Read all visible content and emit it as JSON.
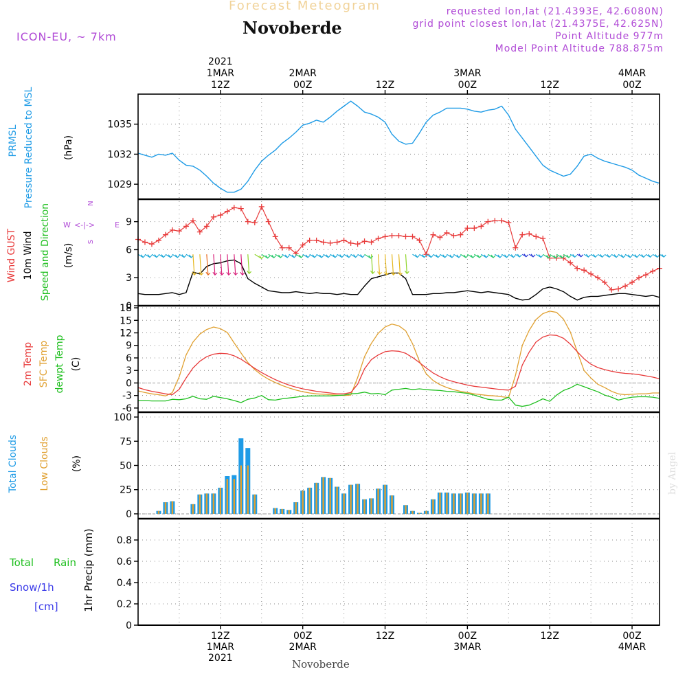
{
  "header": {
    "title": "Forecast Meteogram",
    "location": "Novoberde",
    "model": "ICON-EU, ~ 7km",
    "requested": "requested lon,lat (21.4393E, 42.6080N)",
    "grid_point": "grid point closest lon,lat (21.4375E, 42.625N)",
    "point_altitude": "Point Altitude 977m",
    "model_altitude": "Model Point Altitude 788.875m",
    "footer_location": "Novoberde",
    "watermark": "by Angel"
  },
  "time_axis": {
    "top_ticks": [
      {
        "hour": 12,
        "lines": [
          "2021",
          "1MAR",
          "12Z"
        ]
      },
      {
        "hour": 24,
        "lines": [
          "2MAR",
          "00Z"
        ]
      },
      {
        "hour": 36,
        "lines": [
          "12Z"
        ]
      },
      {
        "hour": 48,
        "lines": [
          "3MAR",
          "00Z"
        ]
      },
      {
        "hour": 60,
        "lines": [
          "12Z"
        ]
      },
      {
        "hour": 72,
        "lines": [
          "4MAR",
          "00Z"
        ]
      }
    ],
    "bottom_ticks": [
      {
        "hour": 12,
        "lines": [
          "12Z",
          "1MAR",
          "2021"
        ]
      },
      {
        "hour": 24,
        "lines": [
          "00Z",
          "2MAR"
        ]
      },
      {
        "hour": 36,
        "lines": [
          "12Z"
        ]
      },
      {
        "hour": 48,
        "lines": [
          "00Z",
          "3MAR"
        ]
      },
      {
        "hour": 60,
        "lines": [
          "12Z"
        ]
      },
      {
        "hour": 72,
        "lines": [
          "00Z",
          "4MAR"
        ]
      }
    ]
  },
  "panels": {
    "pressure": {
      "labels": [
        {
          "text": "PRMSL",
          "color": "#1e9be6"
        },
        {
          "text": "Pressure Reduced to MSL",
          "color": "#1e9be6"
        },
        {
          "text": "(hPa)",
          "color": "#000000"
        }
      ],
      "ticks": [
        "1029",
        "1032",
        "1035"
      ]
    },
    "wind": {
      "labels": [
        {
          "text": "Wind GUST",
          "color": "#e83a3a"
        },
        {
          "text": "10m Wind",
          "color": "#000000"
        },
        {
          "text": "Speed and Direction",
          "color": "#1fbf1f"
        },
        {
          "text": "(m/s)",
          "color": "#000000"
        }
      ],
      "compass": {
        "n": "N",
        "s": "S",
        "w": "W",
        "e": "E",
        "arrows": "<-|->",
        "color": "#b04ad6"
      },
      "ticks": [
        "0",
        "3",
        "6",
        "9"
      ]
    },
    "temperature": {
      "labels": [
        {
          "text": "2m Temp",
          "color": "#e83a3a"
        },
        {
          "text": "SFC Temp",
          "color": "#e0a030"
        },
        {
          "text": "dewpt Temp",
          "color": "#1fbf1f"
        },
        {
          "text": "(C)",
          "color": "#000000"
        }
      ],
      "ticks": [
        "-6",
        "-3",
        "0",
        "3",
        "6",
        "9",
        "12",
        "15",
        "18"
      ]
    },
    "clouds": {
      "labels": [
        {
          "text": "Total Clouds",
          "color": "#1e9be6"
        },
        {
          "text": "Low Clouds",
          "color": "#e0a030"
        },
        {
          "text": "(%)",
          "color": "#000000"
        }
      ],
      "ticks": [
        "0",
        "25",
        "50",
        "75",
        "100"
      ]
    },
    "precip": {
      "labels": [
        {
          "text": "Total",
          "color": "#1fbf1f"
        },
        {
          "text": "Rain",
          "color": "#1fbf1f"
        },
        {
          "text": "Snow/1h",
          "color": "#3a3ae8"
        },
        {
          "text": "[cm]",
          "color": "#3a3ae8"
        },
        {
          "text": "1hr Precip (mm)",
          "color": "#000000"
        }
      ],
      "ticks": [
        "0",
        "0.2",
        "0.4",
        "0.6",
        "0.8"
      ]
    }
  },
  "chart_data": {
    "type": "line",
    "x_unit": "hours since 2021-03-01 00Z",
    "xlim": [
      0,
      76
    ],
    "colors": {
      "pressure": "#1e9be6",
      "gust": "#e83a3a",
      "wind": "#000000",
      "temp2m": "#e83a3a",
      "sfc": "#e0a030",
      "dew": "#1fbf1f",
      "total_clouds": "#1e9be6",
      "low_clouds": "#e0a030"
    },
    "pressure": {
      "name": "PRMSL",
      "ylim": [
        1027.5,
        1038
      ],
      "x": [
        0,
        1,
        2,
        3,
        4,
        5,
        6,
        7,
        8,
        9,
        10,
        11,
        12,
        13,
        14,
        15,
        16,
        17,
        18,
        19,
        20,
        21,
        22,
        23,
        24,
        25,
        26,
        27,
        28,
        29,
        30,
        31,
        32,
        33,
        34,
        35,
        36,
        37,
        38,
        39,
        40,
        41,
        42,
        43,
        44,
        45,
        46,
        47,
        48,
        49,
        50,
        51,
        52,
        53,
        54,
        55,
        56,
        57,
        58,
        59,
        60,
        61,
        62,
        63,
        64,
        65,
        66,
        67,
        68,
        69,
        70,
        71,
        72,
        73,
        74,
        75,
        76
      ],
      "values": [
        1032.1,
        1031.9,
        1031.7,
        1032.0,
        1031.9,
        1032.1,
        1031.4,
        1030.9,
        1030.8,
        1030.4,
        1029.8,
        1029.1,
        1028.6,
        1028.2,
        1028.2,
        1028.5,
        1029.3,
        1030.4,
        1031.3,
        1031.9,
        1032.4,
        1033.1,
        1033.6,
        1034.2,
        1034.9,
        1035.1,
        1035.4,
        1035.2,
        1035.7,
        1036.3,
        1036.8,
        1037.3,
        1036.8,
        1036.2,
        1036.0,
        1035.7,
        1035.2,
        1034.0,
        1033.3,
        1033.0,
        1033.1,
        1034.1,
        1035.2,
        1035.9,
        1036.2,
        1036.6,
        1036.6,
        1036.6,
        1036.5,
        1036.3,
        1036.2,
        1036.4,
        1036.5,
        1036.8,
        1035.9,
        1034.5,
        1033.6,
        1032.7,
        1031.8,
        1030.9,
        1030.4,
        1030.1,
        1029.8,
        1030.0,
        1030.8,
        1031.8,
        1032.0,
        1031.6,
        1031.3,
        1031.1,
        1030.9,
        1030.7,
        1030.4,
        1029.9,
        1029.6,
        1029.3,
        1029.1
      ]
    },
    "wind": {
      "ylim": [
        0,
        11.4
      ],
      "x": [
        0,
        1,
        2,
        3,
        4,
        5,
        6,
        7,
        8,
        9,
        10,
        11,
        12,
        13,
        14,
        15,
        16,
        17,
        18,
        19,
        20,
        21,
        22,
        23,
        24,
        25,
        26,
        27,
        28,
        29,
        30,
        31,
        32,
        33,
        34,
        35,
        36,
        37,
        38,
        39,
        40,
        41,
        42,
        43,
        44,
        45,
        46,
        47,
        48,
        49,
        50,
        51,
        52,
        53,
        54,
        55,
        56,
        57,
        58,
        59,
        60,
        61,
        62,
        63,
        64,
        65,
        66,
        67,
        68,
        69,
        70,
        71,
        72,
        73,
        74,
        75,
        76
      ],
      "gust": [
        7.1,
        6.8,
        6.6,
        7.0,
        7.6,
        8.1,
        8.0,
        8.5,
        9.1,
        7.9,
        8.5,
        9.5,
        9.7,
        10.1,
        10.5,
        10.4,
        9.0,
        8.9,
        10.6,
        9.0,
        7.4,
        6.2,
        6.2,
        5.6,
        6.5,
        7.0,
        7.0,
        6.8,
        6.7,
        6.8,
        7.0,
        6.7,
        6.6,
        6.9,
        6.8,
        7.2,
        7.4,
        7.5,
        7.5,
        7.4,
        7.4,
        7.0,
        5.5,
        7.6,
        7.3,
        7.8,
        7.5,
        7.6,
        8.3,
        8.3,
        8.5,
        9.0,
        9.1,
        9.1,
        8.9,
        6.2,
        7.6,
        7.7,
        7.4,
        7.2,
        5.1,
        5.1,
        5.1,
        4.6,
        4.0,
        3.8,
        3.4,
        3.0,
        2.5,
        1.7,
        1.8,
        2.1,
        2.5,
        3.0,
        3.3,
        3.7,
        4.0
      ],
      "speed": [
        1.3,
        1.2,
        1.2,
        1.2,
        1.3,
        1.4,
        1.2,
        1.4,
        3.6,
        3.4,
        4.2,
        4.5,
        4.6,
        4.8,
        4.9,
        4.5,
        2.9,
        2.4,
        2.0,
        1.6,
        1.5,
        1.4,
        1.4,
        1.5,
        1.4,
        1.3,
        1.4,
        1.3,
        1.3,
        1.2,
        1.3,
        1.2,
        1.2,
        2.1,
        2.9,
        3.1,
        3.3,
        3.5,
        3.5,
        2.9,
        1.2,
        1.2,
        1.2,
        1.3,
        1.3,
        1.4,
        1.4,
        1.5,
        1.6,
        1.5,
        1.4,
        1.5,
        1.4,
        1.3,
        1.2,
        0.8,
        0.6,
        0.7,
        1.2,
        1.8,
        2.0,
        1.8,
        1.5,
        1.0,
        0.6,
        0.9,
        1.0,
        1.0,
        1.1,
        1.2,
        1.3,
        1.3,
        1.2,
        1.1,
        1.0,
        1.1,
        0.9
      ]
    },
    "temperature": {
      "ylim": [
        -7,
        18.5
      ],
      "x": [
        0,
        1,
        2,
        3,
        4,
        5,
        6,
        7,
        8,
        9,
        10,
        11,
        12,
        13,
        14,
        15,
        16,
        17,
        18,
        19,
        20,
        21,
        22,
        23,
        24,
        25,
        26,
        27,
        28,
        29,
        30,
        31,
        32,
        33,
        34,
        35,
        36,
        37,
        38,
        39,
        40,
        41,
        42,
        43,
        44,
        45,
        46,
        47,
        48,
        49,
        50,
        51,
        52,
        53,
        54,
        55,
        56,
        57,
        58,
        59,
        60,
        61,
        62,
        63,
        64,
        65,
        66,
        67,
        68,
        69,
        70,
        71,
        72,
        73,
        74,
        75,
        76
      ],
      "temp2m": [
        -1.1,
        -1.6,
        -2.0,
        -2.3,
        -2.6,
        -2.8,
        -1.5,
        1.2,
        3.6,
        5.2,
        6.3,
        6.9,
        7.1,
        7.0,
        6.5,
        5.7,
        4.6,
        3.5,
        2.5,
        1.6,
        0.8,
        0.1,
        -0.5,
        -1.0,
        -1.4,
        -1.7,
        -2.0,
        -2.2,
        -2.4,
        -2.6,
        -2.6,
        -2.3,
        -0.3,
        3.4,
        5.6,
        6.7,
        7.5,
        7.7,
        7.6,
        7.1,
        6.1,
        4.9,
        3.6,
        2.4,
        1.5,
        0.8,
        0.3,
        -0.1,
        -0.5,
        -0.8,
        -1.0,
        -1.2,
        -1.4,
        -1.6,
        -1.7,
        -0.8,
        4.3,
        7.4,
        9.8,
        11.0,
        11.5,
        11.4,
        10.7,
        9.3,
        7.5,
        5.8,
        4.5,
        3.7,
        3.2,
        2.8,
        2.5,
        2.3,
        2.2,
        2.0,
        1.7,
        1.4,
        1.0
      ],
      "sfc": [
        -1.9,
        -2.3,
        -2.6,
        -2.8,
        -3.1,
        -2.3,
        1.5,
        6.7,
        9.8,
        11.7,
        12.8,
        13.4,
        13.0,
        12.1,
        9.6,
        7.2,
        4.9,
        3.2,
        1.9,
        0.9,
        0.1,
        -0.6,
        -1.2,
        -1.7,
        -2.1,
        -2.4,
        -2.6,
        -2.7,
        -2.8,
        -2.9,
        -3.0,
        -2.9,
        1.3,
        6.3,
        9.5,
        11.9,
        13.4,
        14.1,
        13.7,
        12.5,
        9.4,
        5.2,
        2.2,
        0.6,
        -0.4,
        -1.1,
        -1.6,
        -2.0,
        -2.3,
        -2.6,
        -2.8,
        -3.0,
        -3.1,
        -3.3,
        -3.5,
        1.8,
        9.0,
        12.6,
        15.2,
        16.6,
        17.2,
        16.9,
        15.3,
        12.2,
        7.5,
        3.0,
        1.2,
        -0.3,
        -1.1,
        -2.0,
        -2.6,
        -2.8,
        -2.7,
        -2.6,
        -2.6,
        -2.4,
        -2.4
      ],
      "dew": [
        -4.2,
        -4.2,
        -4.3,
        -4.3,
        -4.3,
        -3.9,
        -4.0,
        -3.8,
        -3.2,
        -3.8,
        -3.9,
        -3.2,
        -3.5,
        -3.8,
        -4.2,
        -4.7,
        -3.9,
        -3.6,
        -3.0,
        -4.0,
        -4.1,
        -3.8,
        -3.6,
        -3.4,
        -3.2,
        -3.1,
        -3.1,
        -3.1,
        -3.1,
        -3.0,
        -2.9,
        -2.6,
        -2.5,
        -2.2,
        -2.6,
        -2.5,
        -2.8,
        -1.7,
        -1.5,
        -1.3,
        -1.6,
        -1.4,
        -1.6,
        -1.7,
        -1.8,
        -2.0,
        -2.1,
        -2.3,
        -2.5,
        -2.9,
        -3.4,
        -3.9,
        -4.1,
        -4.1,
        -3.4,
        -5.3,
        -5.6,
        -5.3,
        -4.6,
        -3.8,
        -4.4,
        -2.9,
        -1.8,
        -1.2,
        -0.3,
        -0.9,
        -1.5,
        -2.1,
        -2.9,
        -3.4,
        -4.1,
        -3.7,
        -3.4,
        -3.3,
        -3.3,
        -3.4,
        -3.7
      ]
    },
    "clouds": {
      "ylim": [
        -5,
        105
      ],
      "x": [
        1,
        2,
        3,
        4,
        5,
        6,
        7,
        8,
        9,
        10,
        11,
        12,
        13,
        14,
        15,
        16,
        17,
        18,
        19,
        20,
        21,
        22,
        23,
        24,
        25,
        26,
        27,
        28,
        29,
        30,
        31,
        32,
        33,
        34,
        35,
        36,
        37,
        38,
        39,
        40,
        41,
        42,
        43,
        44,
        45,
        46,
        47,
        48,
        49,
        50,
        51,
        52,
        53
      ],
      "total": [
        0,
        0,
        3,
        12,
        13,
        0,
        0,
        10,
        20,
        21,
        21,
        27,
        39,
        40,
        78,
        68,
        20,
        0,
        0,
        6,
        5,
        4,
        12,
        24,
        27,
        32,
        38,
        37,
        28,
        21,
        30,
        31,
        15,
        16,
        26,
        30,
        19,
        0,
        9,
        3,
        1,
        3,
        15,
        22,
        22,
        21,
        21,
        22,
        21,
        21,
        21,
        0,
        0
      ],
      "low": [
        0,
        0,
        3,
        12,
        13,
        0,
        0,
        10,
        20,
        21,
        21,
        27,
        36,
        36,
        50,
        50,
        20,
        0,
        0,
        6,
        5,
        4,
        12,
        24,
        27,
        32,
        38,
        37,
        28,
        21,
        30,
        31,
        15,
        16,
        26,
        30,
        19,
        0,
        9,
        3,
        1,
        3,
        15,
        22,
        22,
        21,
        21,
        22,
        21,
        21,
        21,
        0,
        0
      ]
    },
    "precip": {
      "ylim": [
        0,
        1
      ],
      "x": [
        0,
        76
      ],
      "values": [
        0,
        0
      ]
    }
  }
}
